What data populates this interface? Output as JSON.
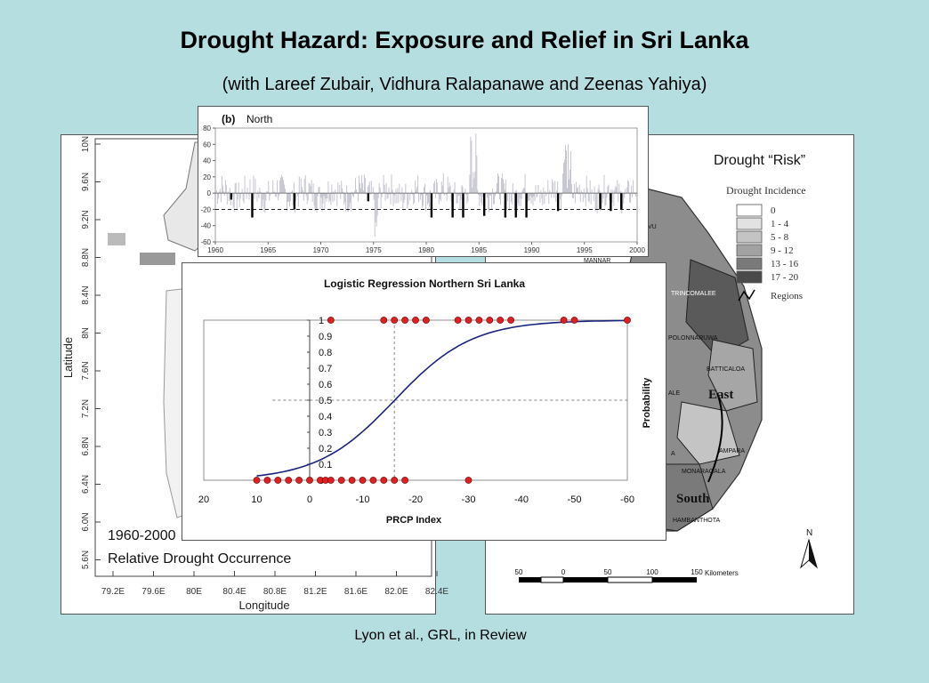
{
  "slide": {
    "title": "Drought Hazard:  Exposure and Relief in Sri Lanka",
    "subtitle": "(with Lareef Zubair, Vidhura Ralapanawe and Zeenas Yahiya)",
    "credit": "Lyon et al., GRL, in Review"
  },
  "left_map": {
    "lat_labels": [
      "10N",
      "9.6N",
      "9.2N",
      "8.8N",
      "8.4N",
      "8N",
      "7.6N",
      "7.2N",
      "6.8N",
      "6.4N",
      "6.0N",
      "5.6N"
    ],
    "lon_labels": [
      "79.2E",
      "79.6E",
      "80E",
      "80.4E",
      "80.8E",
      "81.2E",
      "81.6E",
      "82.0E",
      "82.4E"
    ],
    "ylabel": "Latitude",
    "xlabel": "Longitude",
    "period": "1960-2000",
    "caption": "Relative Drought Occurrence"
  },
  "right_map": {
    "heading": "Drought “Risk”",
    "legend_title": "Drought Incidence",
    "legend_items": [
      {
        "label": "0",
        "color": "#ffffff"
      },
      {
        "label": "1 - 4",
        "color": "#e2e2e2"
      },
      {
        "label": "5 - 8",
        "color": "#c4c4c4"
      },
      {
        "label": "9 - 12",
        "color": "#a2a2a2"
      },
      {
        "label": "13 - 16",
        "color": "#7a7a7a"
      },
      {
        "label": "17 - 20",
        "color": "#4a4a4a"
      }
    ],
    "legend_regions": "Regions",
    "region_labels": {
      "east": "East",
      "south": "South"
    },
    "place_labels": [
      "TRINCOMALEE",
      "POLONNARUWA",
      "BATTICALOA",
      "AMPARA",
      "MONARAGALA",
      "HAMBANTHOTA",
      "VU",
      "MANNAR",
      "ALE",
      "A"
    ],
    "north_arrow": "N",
    "scale_labels": [
      "50",
      "0",
      "50",
      "100",
      "150"
    ],
    "scale_unit": "Kilometers"
  },
  "chart_data": [
    {
      "type": "bar",
      "title": "(b)",
      "subtitle": "North",
      "x_ticks": [
        "1960",
        "1965",
        "1970",
        "1975",
        "1980",
        "1985",
        "1990",
        "1995",
        "2000"
      ],
      "y_ticks": [
        "80",
        "60",
        "40",
        "20",
        "0",
        "-20",
        "-40",
        "-60"
      ],
      "ylim": [
        -60,
        80
      ],
      "xlim": [
        1960,
        2000
      ],
      "threshold": -20,
      "drought_years": [
        1961,
        1963,
        1967,
        1974,
        1980,
        1982,
        1983,
        1985,
        1987,
        1988,
        1989,
        1992,
        1996,
        1997,
        1998
      ],
      "drought_values": [
        -8,
        -30,
        -20,
        -10,
        -30,
        -30,
        -30,
        -28,
        -30,
        -30,
        -30,
        -22,
        -20,
        -22,
        -20
      ]
    },
    {
      "type": "scatter",
      "title": "Logistic Regression Northern Sri Lanka",
      "xlabel": "PRCP Index",
      "ylabel": "Probability",
      "x_ticks": [
        "20",
        "10",
        "0",
        "-10",
        "-20",
        "-30",
        "-40",
        "-50",
        "-60"
      ],
      "y_ticks": [
        "0",
        "0.1",
        "0.2",
        "0.3",
        "0.4",
        "0.5",
        "0.6",
        "0.7",
        "0.8",
        "0.9",
        "1"
      ],
      "xlim": [
        20,
        -60
      ],
      "ylim": [
        0,
        1
      ],
      "reference_lines": {
        "y": 0.5,
        "x": -16
      },
      "points_y1": [
        -4,
        -14,
        -16,
        -18,
        -20,
        -22,
        -28,
        -30,
        -32,
        -34,
        -36,
        -38,
        -48,
        -50,
        -60
      ],
      "points_y0": [
        10,
        8,
        6,
        4,
        2,
        0,
        -2,
        -3,
        -4,
        -6,
        -8,
        -10,
        -12,
        -14,
        -16,
        -18,
        -30
      ]
    }
  ]
}
